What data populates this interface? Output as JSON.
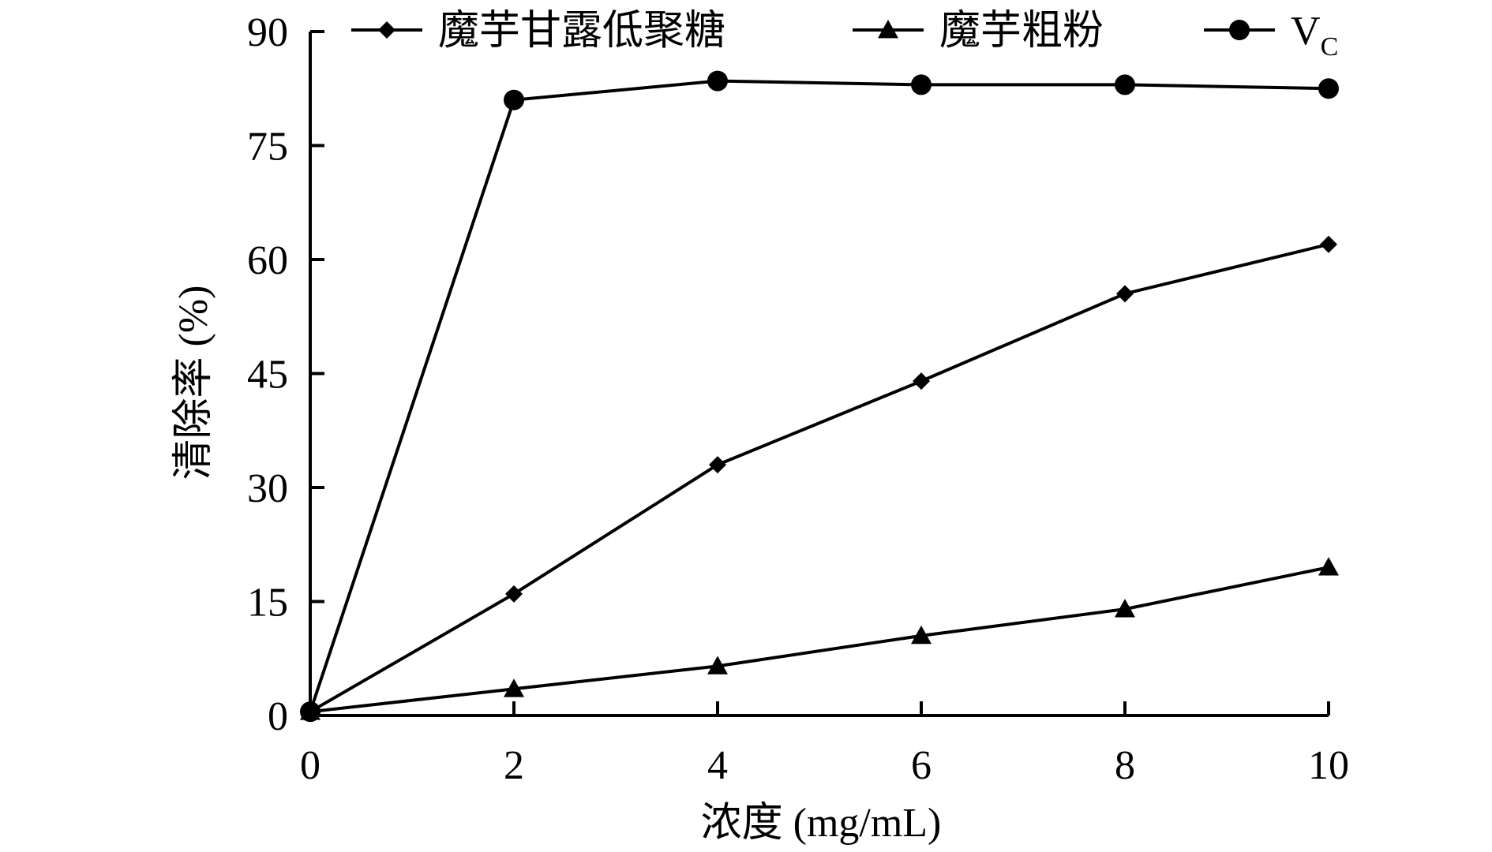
{
  "chart_data": {
    "type": "line",
    "title": "",
    "xlabel": "浓度 (mg/mL)",
    "ylabel": "清除率 (%)",
    "xlim": [
      0,
      10
    ],
    "ylim": [
      0,
      90
    ],
    "x_ticks": [
      0,
      2,
      4,
      6,
      8,
      10
    ],
    "y_ticks": [
      0,
      15,
      30,
      45,
      60,
      75,
      90
    ],
    "grid": false,
    "legend_position": "top",
    "x": [
      0,
      2,
      4,
      6,
      8,
      10
    ],
    "series": [
      {
        "name": "魔芋甘露低聚糖",
        "marker": "diamond",
        "values": [
          0.5,
          16,
          33,
          44,
          55.5,
          62
        ]
      },
      {
        "name": "魔芋粗粉",
        "marker": "triangle",
        "values": [
          0.5,
          3.5,
          6.5,
          10.5,
          14,
          19.5
        ]
      },
      {
        "name": "V",
        "name_subscript": "C",
        "marker": "circle",
        "values": [
          0.5,
          81,
          83.5,
          83,
          83,
          82.5
        ]
      }
    ],
    "line_color": "#000000"
  }
}
